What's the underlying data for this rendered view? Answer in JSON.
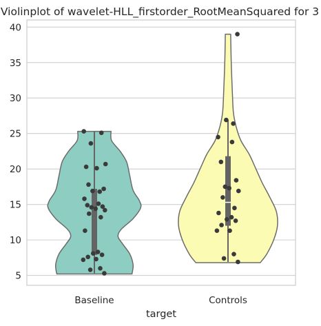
{
  "chart_data": {
    "type": "violin",
    "title": "Violinplot of wavelet-HLL_firstorder_RootMeanSquared for 3",
    "xlabel": "target",
    "ylabel": "",
    "categories": [
      "Baseline",
      "Controls"
    ],
    "y_ticks": [
      5,
      10,
      15,
      20,
      25,
      30,
      35,
      40
    ],
    "ylim": [
      3.6,
      41.0
    ],
    "grid": "horizontal",
    "colors": {
      "Baseline": "#8ecdc1",
      "Controls": "#fbfbb4",
      "outline": "#6b6b6b",
      "points": "#3a3a3a",
      "box": "#646464"
    },
    "series": [
      {
        "category": "Baseline",
        "points": [
          25.3,
          25.1,
          23.6,
          20.7,
          20.3,
          20.1,
          17.8,
          17.2,
          16.9,
          16.8,
          15.8,
          15.1,
          14.9,
          14.7,
          14.6,
          14.4,
          14.2,
          13.7,
          13.2,
          11.3,
          8.3,
          8.1,
          7.9,
          7.6,
          7.3,
          7.2,
          6.0,
          5.8,
          5.3
        ],
        "box": {
          "q1": 7.9,
          "median": 14.4,
          "q3": 17.2,
          "whisker_low": 5.3,
          "whisker_high": 25.3
        },
        "density": [
          [
            5.2,
            0.7
          ],
          [
            6.5,
            0.72
          ],
          [
            8.0,
            0.66
          ],
          [
            9.5,
            0.52
          ],
          [
            10.5,
            0.44
          ],
          [
            11.5,
            0.5
          ],
          [
            13.0,
            0.72
          ],
          [
            14.5,
            0.86
          ],
          [
            15.5,
            0.84
          ],
          [
            17.0,
            0.72
          ],
          [
            19.0,
            0.66
          ],
          [
            21.0,
            0.6
          ],
          [
            22.5,
            0.48
          ],
          [
            24.0,
            0.32
          ],
          [
            25.3,
            0.31
          ]
        ]
      },
      {
        "category": "Controls",
        "points": [
          39.0,
          26.9,
          26.4,
          24.5,
          23.8,
          21.0,
          18.4,
          17.5,
          17.3,
          16.9,
          16.0,
          14.5,
          13.8,
          13.2,
          12.9,
          12.7,
          12.1,
          11.3,
          11.3,
          8.0,
          7.4,
          6.9
        ],
        "box": {
          "q1": 12.0,
          "median": 15.3,
          "q3": 21.8,
          "whisker_low": 6.9,
          "whisker_high": 26.9
        },
        "density": [
          [
            6.8,
            0.6
          ],
          [
            8.0,
            0.72
          ],
          [
            10.0,
            0.85
          ],
          [
            12.0,
            0.92
          ],
          [
            14.0,
            0.9
          ],
          [
            16.0,
            0.78
          ],
          [
            18.0,
            0.64
          ],
          [
            20.0,
            0.52
          ],
          [
            22.0,
            0.4
          ],
          [
            24.0,
            0.24
          ],
          [
            26.0,
            0.15
          ],
          [
            28.0,
            0.1
          ],
          [
            31.0,
            0.08
          ],
          [
            35.0,
            0.06
          ],
          [
            39.0,
            0.05
          ]
        ]
      }
    ]
  }
}
